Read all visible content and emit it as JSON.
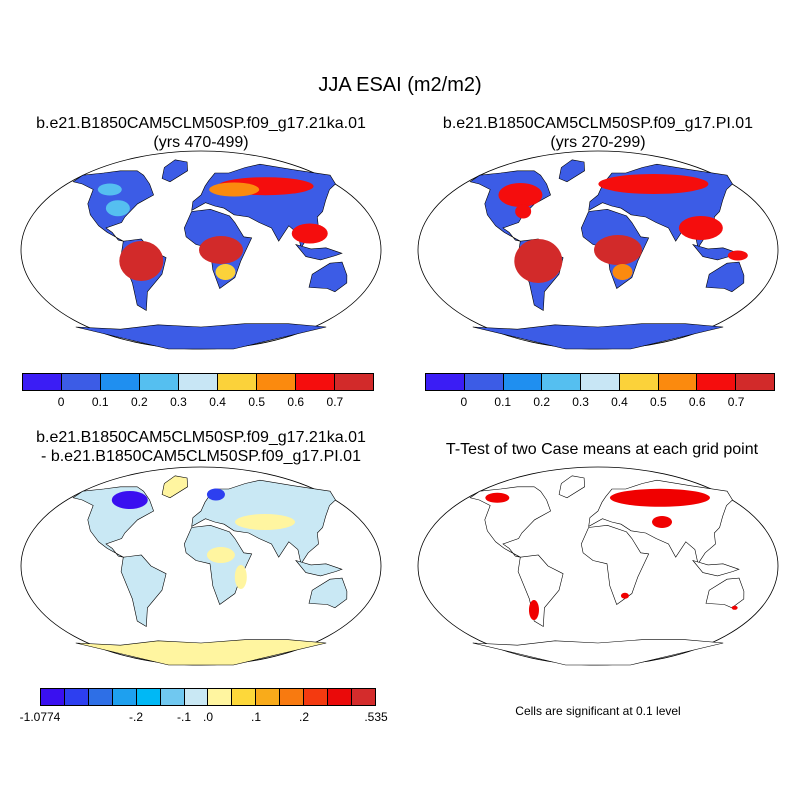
{
  "figure": {
    "title": "JJA ESAI (m2/m2)",
    "note": "Cells are significant at 0.1 level"
  },
  "panels": [
    {
      "id": "case1",
      "title_lines": [
        "b.e21.B1850CAM5CLM50SP.f09_g17.21ka.01",
        "(yrs 470-499)"
      ]
    },
    {
      "id": "case2",
      "title_lines": [
        "b.e21.B1850CAM5CLM50SP.f09_g17.PI.01",
        "(yrs 270-299)"
      ]
    },
    {
      "id": "diff",
      "title_lines": [
        "b.e21.B1850CAM5CLM50SP.f09_g17.21ka.01",
        "- b.e21.B1850CAM5CLM50SP.f09_g17.PI.01"
      ]
    },
    {
      "id": "ttest",
      "title_lines": [
        "T-Test of two Case means at each grid point"
      ]
    }
  ],
  "colorbars": {
    "abs": {
      "colors": [
        "#3b1df5",
        "#3c5ce6",
        "#1f8ff0",
        "#55bff0",
        "#c8e6f5",
        "#fbd23a",
        "#fb8a0e",
        "#f50d0d",
        "#d22a2a"
      ],
      "ticks": [
        "0",
        "0.1",
        "0.2",
        "0.3",
        "0.4",
        "0.5",
        "0.6",
        "0.7"
      ]
    },
    "diff": {
      "colors": [
        "#3a10f0",
        "#2d3ff0",
        "#2e6fe6",
        "#1ea0ef",
        "#00b8f5",
        "#70c8f0",
        "#c9e8f4",
        "#fff5a0",
        "#fdd83a",
        "#f9ab1a",
        "#f87a10",
        "#f43a10",
        "#ea0a0a",
        "#d42c2c"
      ],
      "ticks": [
        "-1.0774",
        "-.2",
        "-.1",
        ".0",
        ".1",
        ".2",
        ".535"
      ]
    }
  },
  "colors": {
    "ocean": "#ffffff",
    "land_low": "#3c5ce6",
    "land_high": "#d22a2a",
    "significance": "#f00000",
    "diff_neutral": "#fff5a0"
  }
}
